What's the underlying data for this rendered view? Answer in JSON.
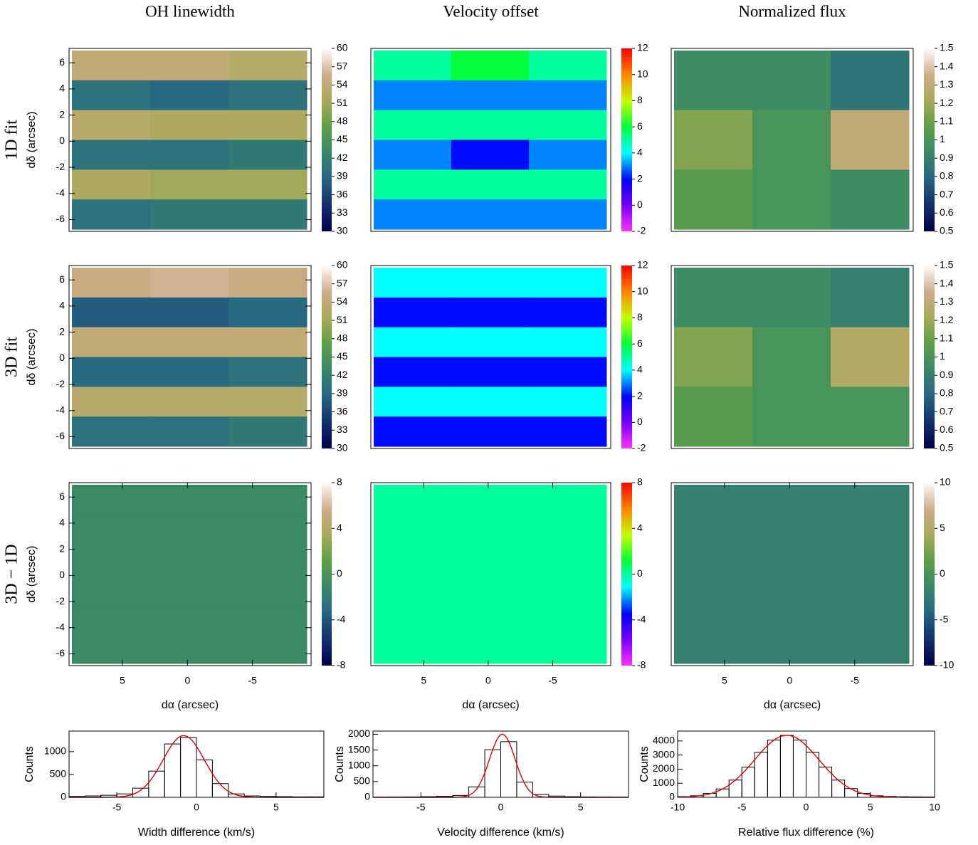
{
  "chart_data": [
    {
      "type": "heatmap",
      "title": "OH linewidth",
      "row_label": "1D fit",
      "ylabel": "dδ (arcsec)",
      "colormap": "earth",
      "xlim": [
        9.1,
        -9.5
      ],
      "ylim": [
        -6.9,
        7.1
      ],
      "yticks": [
        -6,
        -4,
        -2,
        0,
        2,
        4,
        6
      ],
      "colorbar": {
        "lim": [
          30,
          60
        ],
        "ticks": [
          30,
          33,
          36,
          39,
          42,
          45,
          48,
          51,
          54,
          57,
          60
        ]
      },
      "z": [
        [
          54,
          54,
          53
        ],
        [
          40,
          39,
          40
        ],
        [
          53,
          52,
          52
        ],
        [
          40,
          40,
          41
        ],
        [
          52,
          51,
          51
        ],
        [
          40,
          41,
          41
        ]
      ]
    },
    {
      "type": "heatmap",
      "title": "Velocity offset",
      "colormap": "rainbow",
      "xlim": [
        9.1,
        -9.5
      ],
      "ylim": [
        -6.9,
        7.1
      ],
      "colorbar": {
        "lim": [
          -2,
          12
        ],
        "ticks": [
          -2,
          0,
          2,
          4,
          6,
          8,
          10,
          12
        ]
      },
      "z": [
        [
          5,
          6,
          5
        ],
        [
          3,
          3,
          3
        ],
        [
          5,
          5,
          5
        ],
        [
          3,
          2,
          3
        ],
        [
          5,
          5,
          5
        ],
        [
          3,
          3,
          3
        ]
      ]
    },
    {
      "type": "heatmap",
      "title": "Normalized flux",
      "colormap": "earth",
      "xlim": [
        9.1,
        -9.5
      ],
      "ylim": [
        -6.9,
        7.1
      ],
      "colorbar": {
        "lim": [
          0.5,
          1.5
        ],
        "ticks": [
          0.5,
          0.6,
          0.7,
          0.8,
          0.9,
          1,
          1.1,
          1.2,
          1.3,
          1.4,
          1.5
        ]
      },
      "z": [
        [
          0.95,
          0.95,
          0.85
        ],
        [
          0.95,
          0.95,
          0.85
        ],
        [
          1.15,
          1.0,
          1.3
        ],
        [
          1.15,
          1.0,
          1.3
        ],
        [
          1.05,
          1.0,
          0.95
        ],
        [
          1.05,
          1.0,
          0.95
        ]
      ]
    },
    {
      "type": "heatmap",
      "row_label": "3D fit",
      "ylabel": "dδ (arcsec)",
      "colormap": "earth",
      "xlim": [
        9.1,
        -9.5
      ],
      "ylim": [
        -6.9,
        7.1
      ],
      "yticks": [
        -6,
        -4,
        -2,
        0,
        2,
        4,
        6
      ],
      "colorbar": {
        "lim": [
          30,
          60
        ],
        "ticks": [
          30,
          33,
          36,
          39,
          42,
          45,
          48,
          51,
          54,
          57,
          60
        ]
      },
      "z": [
        [
          55,
          56,
          55
        ],
        [
          38,
          38,
          39
        ],
        [
          54,
          54,
          54
        ],
        [
          39,
          39,
          40
        ],
        [
          53,
          53,
          53
        ],
        [
          40,
          40,
          41
        ]
      ]
    },
    {
      "type": "heatmap",
      "colormap": "rainbow",
      "xlim": [
        9.1,
        -9.5
      ],
      "ylim": [
        -6.9,
        7.1
      ],
      "colorbar": {
        "lim": [
          -2,
          12
        ],
        "ticks": [
          -2,
          0,
          2,
          4,
          6,
          8,
          10,
          12
        ]
      },
      "z": [
        [
          4,
          4,
          4
        ],
        [
          2,
          2,
          2
        ],
        [
          4,
          4,
          4
        ],
        [
          2,
          2,
          2
        ],
        [
          4,
          4,
          4
        ],
        [
          2,
          2,
          2
        ]
      ]
    },
    {
      "type": "heatmap",
      "colormap": "earth",
      "xlim": [
        9.1,
        -9.5
      ],
      "ylim": [
        -6.9,
        7.1
      ],
      "colorbar": {
        "lim": [
          0.5,
          1.5
        ],
        "ticks": [
          0.5,
          0.6,
          0.7,
          0.8,
          0.9,
          1,
          1.1,
          1.2,
          1.3,
          1.4,
          1.5
        ]
      },
      "z": [
        [
          0.95,
          0.95,
          0.9
        ],
        [
          0.95,
          0.95,
          0.9
        ],
        [
          1.15,
          1.0,
          1.25
        ],
        [
          1.15,
          1.0,
          1.25
        ],
        [
          1.05,
          1.0,
          1.0
        ],
        [
          1.05,
          1.0,
          1.0
        ]
      ]
    },
    {
      "type": "heatmap",
      "row_label": "3D − 1D",
      "ylabel": "dδ (arcsec)",
      "xlabel": "dα (arcsec)",
      "colormap": "earth",
      "xlim": [
        9.1,
        -9.5
      ],
      "ylim": [
        -6.9,
        7.1
      ],
      "xticks": [
        5,
        0,
        -5
      ],
      "yticks": [
        -6,
        -4,
        -2,
        0,
        2,
        4,
        6
      ],
      "colorbar": {
        "lim": [
          -8,
          8
        ],
        "ticks": [
          -8,
          -4,
          0,
          4,
          8
        ]
      },
      "z": [
        [
          -1,
          -1,
          -1
        ],
        [
          -1,
          -1,
          -1
        ],
        [
          -1,
          -1,
          -1
        ],
        [
          -1,
          -1,
          -1
        ],
        [
          -1,
          -1,
          -1
        ],
        [
          -1,
          -1,
          -1
        ]
      ]
    },
    {
      "type": "heatmap",
      "xlabel": "dα (arcsec)",
      "colormap": "rainbow",
      "xlim": [
        9.1,
        -9.5
      ],
      "ylim": [
        -6.9,
        7.1
      ],
      "xticks": [
        5,
        0,
        -5
      ],
      "colorbar": {
        "lim": [
          -8,
          8
        ],
        "ticks": [
          -8,
          -4,
          0,
          4,
          8
        ]
      },
      "z": [
        [
          0,
          0,
          0
        ],
        [
          0,
          0,
          0
        ],
        [
          0,
          0,
          0
        ],
        [
          0,
          0,
          0
        ],
        [
          0,
          0,
          0
        ],
        [
          0,
          0,
          0
        ]
      ]
    },
    {
      "type": "heatmap",
      "xlabel": "dα (arcsec)",
      "colormap": "earth",
      "xlim": [
        9.1,
        -9.5
      ],
      "ylim": [
        -6.9,
        7.1
      ],
      "xticks": [
        5,
        0,
        -5
      ],
      "colorbar": {
        "lim": [
          -10,
          10
        ],
        "ticks": [
          -10,
          -5,
          0,
          5,
          10
        ]
      },
      "z": [
        [
          -2,
          -2,
          -2
        ],
        [
          -2,
          -2,
          -2
        ],
        [
          -2,
          -2,
          -2
        ],
        [
          -2,
          -2,
          -2
        ],
        [
          -2,
          -2,
          -2
        ],
        [
          -2,
          -2,
          -2
        ]
      ]
    },
    {
      "type": "histogram",
      "xlabel": "Width difference (km/s)",
      "ylabel": "Counts",
      "color": "#000000",
      "xlim": [
        -8,
        8
      ],
      "ylim": [
        0,
        1450
      ],
      "xticks": [
        -5,
        0,
        5
      ],
      "yticks": [
        0,
        500,
        1000
      ],
      "bins": [
        -8,
        -7,
        -6,
        -5,
        -4,
        -3,
        -2,
        -1,
        0,
        1,
        2,
        3,
        4,
        5,
        6,
        7,
        8
      ],
      "counts": [
        20,
        30,
        45,
        75,
        200,
        574,
        1168,
        1310,
        819,
        300,
        75,
        30,
        20,
        15,
        10,
        10
      ],
      "fit": {
        "color": "#e00000",
        "amplitude": 1350,
        "mean": -0.8,
        "sigma": 1.3
      }
    },
    {
      "type": "histogram",
      "xlabel": "Velocity difference (km/s)",
      "ylabel": "Counts",
      "color": "#000000",
      "xlim": [
        -8,
        8
      ],
      "ylim": [
        0,
        2100
      ],
      "xticks": [
        -5,
        0,
        5
      ],
      "yticks": [
        0,
        500,
        1000,
        1500,
        2000
      ],
      "bins": [
        -8,
        -7,
        -6,
        -5,
        -4,
        -3,
        -2,
        -1,
        0,
        1,
        2,
        3,
        4,
        5,
        6,
        7,
        8
      ],
      "counts": [
        5,
        8,
        12,
        20,
        35,
        60,
        330,
        1510,
        1765,
        480,
        90,
        40,
        20,
        12,
        8,
        5
      ],
      "fit": {
        "color": "#e00000",
        "amplitude": 2000,
        "mean": 0.1,
        "sigma": 0.8
      }
    },
    {
      "type": "histogram",
      "xlabel": "Relative flux difference (%)",
      "ylabel": "Counts",
      "color": "#000000",
      "xlim": [
        -10,
        10
      ],
      "ylim": [
        0,
        4700
      ],
      "xticks": [
        -10,
        -5,
        0,
        5,
        10
      ],
      "yticks": [
        0,
        1000,
        2000,
        3000,
        4000
      ],
      "bins": [
        -10,
        -9,
        -8,
        -7,
        -6,
        -5,
        -4,
        -3,
        -2,
        -1,
        0,
        1,
        2,
        3,
        4,
        5,
        6,
        7,
        8,
        9,
        10
      ],
      "counts": [
        50,
        110,
        280,
        595,
        1223,
        2142,
        3194,
        4062,
        4400,
        4062,
        3194,
        2142,
        1223,
        620,
        280,
        110,
        60,
        40,
        30,
        20
      ],
      "fit": {
        "color": "#e00000",
        "amplitude": 4400,
        "mean": -1.5,
        "sigma": 2.5
      }
    }
  ]
}
